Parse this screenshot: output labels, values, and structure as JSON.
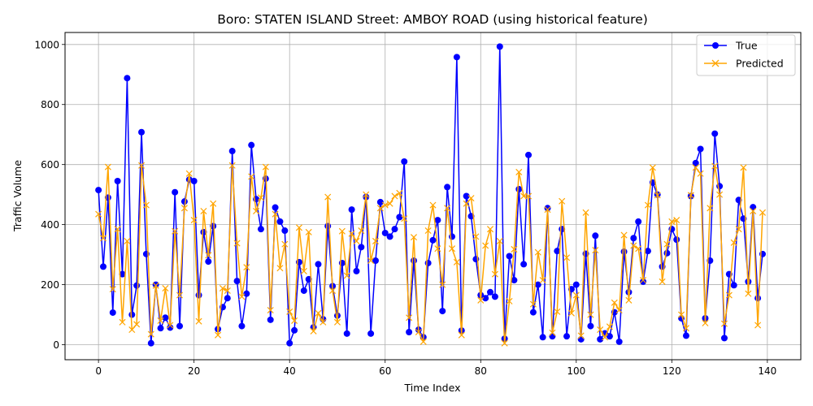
{
  "chart_data": {
    "type": "line",
    "title": "Boro: STATEN ISLAND Street: AMBOY ROAD (using historical feature)",
    "xlabel": "Time Index",
    "ylabel": "Traffic Volume",
    "xlim": [
      -7,
      147
    ],
    "ylim": [
      -50,
      1040
    ],
    "xticks": [
      0,
      20,
      40,
      60,
      80,
      100,
      120,
      140
    ],
    "yticks": [
      0,
      200,
      400,
      600,
      800,
      1000
    ],
    "grid": true,
    "legend_position": "top-right",
    "series": [
      {
        "name": "True",
        "color": "#0000ff",
        "marker": "circle",
        "values": [
          515,
          260,
          490,
          107,
          545,
          235,
          888,
          100,
          197,
          708,
          302,
          5,
          200,
          55,
          90,
          57,
          508,
          62,
          477,
          550,
          545,
          165,
          375,
          277,
          395,
          52,
          125,
          155,
          645,
          212,
          62,
          170,
          665,
          485,
          385,
          553,
          83,
          457,
          410,
          380,
          5,
          48,
          275,
          180,
          218,
          58,
          268,
          85,
          395,
          195,
          97,
          272,
          37,
          450,
          245,
          325,
          492,
          37,
          280,
          475,
          372,
          360,
          385,
          425,
          610,
          42,
          280,
          50,
          25,
          272,
          348,
          415,
          112,
          525,
          360,
          958,
          47,
          495,
          428,
          285,
          165,
          155,
          175,
          160,
          993,
          20,
          295,
          215,
          518,
          268,
          632,
          108,
          200,
          25,
          455,
          28,
          312,
          385,
          28,
          185,
          200,
          18,
          303,
          62,
          363,
          18,
          38,
          28,
          108,
          10,
          310,
          175,
          355,
          410,
          210,
          312,
          540,
          500,
          260,
          305,
          385,
          350,
          88,
          30,
          495,
          605,
          652,
          88,
          280,
          703,
          528,
          22,
          235,
          198,
          482,
          420,
          210,
          458,
          155,
          302
        ]
      },
      {
        "name": "Predicted",
        "color": "#ffa500",
        "marker": "x",
        "values": [
          435,
          355,
          592,
          185,
          385,
          75,
          345,
          50,
          68,
          597,
          465,
          35,
          197,
          80,
          188,
          65,
          378,
          165,
          455,
          570,
          415,
          78,
          445,
          298,
          470,
          32,
          188,
          180,
          597,
          338,
          160,
          258,
          560,
          445,
          490,
          592,
          115,
          435,
          255,
          335,
          110,
          80,
          390,
          245,
          375,
          45,
          105,
          75,
          492,
          180,
          75,
          378,
          230,
          370,
          345,
          380,
          500,
          280,
          345,
          455,
          465,
          470,
          495,
          505,
          420,
          90,
          358,
          42,
          10,
          380,
          465,
          320,
          200,
          455,
          320,
          275,
          32,
          470,
          488,
          360,
          148,
          330,
          385,
          235,
          345,
          5,
          145,
          318,
          575,
          495,
          495,
          135,
          308,
          215,
          450,
          40,
          110,
          478,
          290,
          105,
          165,
          30,
          440,
          100,
          315,
          50,
          25,
          60,
          140,
          115,
          365,
          148,
          330,
          320,
          215,
          465,
          590,
          498,
          210,
          335,
          410,
          415,
          100,
          55,
          498,
          590,
          570,
          72,
          455,
          595,
          500,
          70,
          165,
          340,
          385,
          590,
          170,
          445,
          65,
          440
        ]
      }
    ]
  }
}
